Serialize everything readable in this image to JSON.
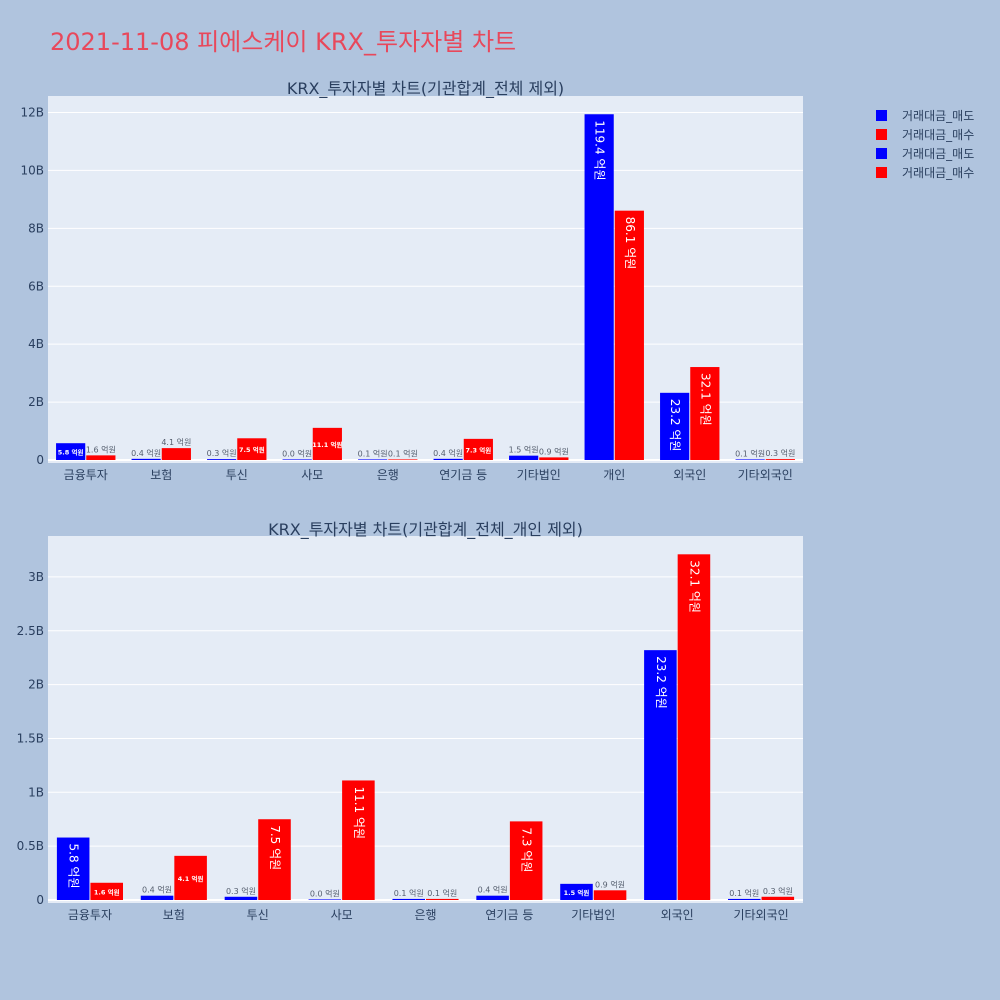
{
  "page_title": "2021-11-08 피에스케이 KRX_투자자별 차트",
  "colors": {
    "sell": "#0000ff",
    "buy": "#ff0000",
    "plot_bg": "#e5ecf6",
    "page_bg": "#b0c4de",
    "title": "#e8485b",
    "text": "#2a3f5f"
  },
  "legend": [
    {
      "name": "거래대금_매도",
      "color": "#0000ff"
    },
    {
      "name": "거래대금_매수",
      "color": "#ff0000"
    },
    {
      "name": "거래대금_매도",
      "color": "#0000ff"
    },
    {
      "name": "거래대금_매수",
      "color": "#ff0000"
    }
  ],
  "chart_data": [
    {
      "type": "bar",
      "title": "KRX_투자자별 차트(기관합계_전체 제외)",
      "categories": [
        "금융투자",
        "보험",
        "투신",
        "사모",
        "은행",
        "연기금 등",
        "기타법인",
        "개인",
        "외국인",
        "기타외국인"
      ],
      "series": [
        {
          "name": "거래대금_매도",
          "values": [
            0.58,
            0.04,
            0.03,
            0.0,
            0.01,
            0.04,
            0.15,
            11.94,
            2.32,
            0.01
          ],
          "labels": [
            "5.8 억원",
            "0.4 억원",
            "0.3 억원",
            "0.0 억원",
            "0.1 억원",
            "0.4 억원",
            "1.5 억원",
            "119.4 억원",
            "23.2 억원",
            "0.1 억원"
          ]
        },
        {
          "name": "거래대금_매수",
          "values": [
            0.16,
            0.41,
            0.75,
            1.11,
            0.01,
            0.73,
            0.09,
            8.61,
            3.21,
            0.03
          ],
          "labels": [
            "1.6 억원",
            "4.1 억원",
            "7.5 억원",
            "11.1 억원",
            "0.1 억원",
            "7.3 억원",
            "0.9 억원",
            "86.1 억원",
            "32.1 억원",
            "0.3 억원"
          ]
        }
      ],
      "yticks": [
        0,
        2,
        4,
        6,
        8,
        10,
        12
      ],
      "ytick_labels": [
        "0",
        "2B",
        "4B",
        "6B",
        "8B",
        "10B",
        "12B"
      ],
      "ylim": [
        0,
        12.57
      ],
      "grid": true
    },
    {
      "type": "bar",
      "title": "KRX_투자자별 차트(기관합계_전체_개인 제외)",
      "categories": [
        "금융투자",
        "보험",
        "투신",
        "사모",
        "은행",
        "연기금 등",
        "기타법인",
        "외국인",
        "기타외국인"
      ],
      "series": [
        {
          "name": "거래대금_매도",
          "values": [
            0.58,
            0.04,
            0.03,
            0.0,
            0.01,
            0.04,
            0.15,
            2.32,
            0.01
          ],
          "labels": [
            "5.8 억원",
            "0.4 억원",
            "0.3 억원",
            "0.0 억원",
            "0.1 억원",
            "0.4 억원",
            "1.5 억원",
            "23.2 억원",
            "0.1 억원"
          ]
        },
        {
          "name": "거래대금_매수",
          "values": [
            0.16,
            0.41,
            0.75,
            1.11,
            0.01,
            0.73,
            0.09,
            3.21,
            0.03
          ],
          "labels": [
            "1.6 억원",
            "4.1 억원",
            "7.5 억원",
            "11.1 억원",
            "0.1 억원",
            "7.3 억원",
            "0.9 억원",
            "32.1 억원",
            "0.3 억원"
          ]
        }
      ],
      "yticks": [
        0,
        0.5,
        1,
        1.5,
        2,
        2.5,
        3
      ],
      "ytick_labels": [
        "0",
        "0.5B",
        "1B",
        "1.5B",
        "2B",
        "2.5B",
        "3B"
      ],
      "ylim": [
        0,
        3.38
      ],
      "grid": true
    }
  ]
}
